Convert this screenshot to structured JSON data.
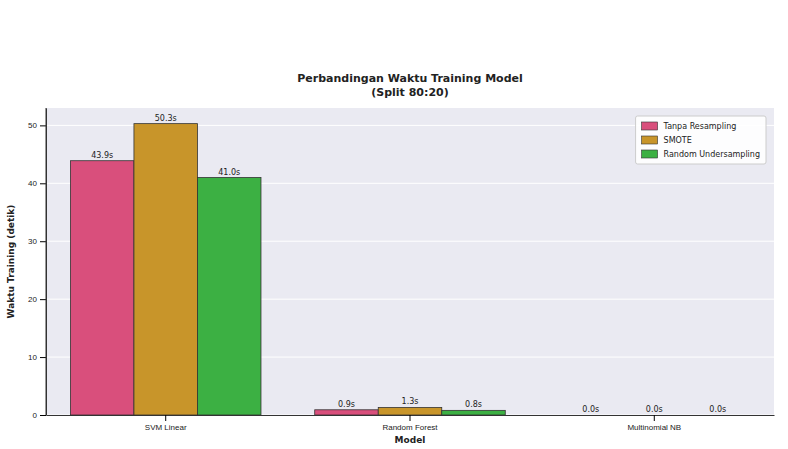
{
  "chart_data": {
    "type": "bar",
    "title": "Perbandingan Waktu Training Model",
    "subtitle": "(Split 80:20)",
    "x_label": "Model",
    "y_label": "Waktu Training (detik)",
    "categories": [
      "SVM Linear",
      "Random Forest",
      "Multinomial NB"
    ],
    "series": [
      {
        "name": "Tanpa Resampling",
        "color": "#d94f7c",
        "values": [
          43.9,
          0.9,
          0.0
        ],
        "value_labels": [
          "43.9s",
          "0.9s",
          "0.0s"
        ]
      },
      {
        "name": "SMOTE",
        "color": "#c8952a",
        "values": [
          50.3,
          1.3,
          0.0
        ],
        "value_labels": [
          "50.3s",
          "1.3s",
          "0.0s"
        ]
      },
      {
        "name": "Random Undersampling",
        "color": "#3cb043",
        "values": [
          41.0,
          0.8,
          0.0
        ],
        "value_labels": [
          "41.0s",
          "0.8s",
          "0.0s"
        ]
      }
    ],
    "ylim": [
      0,
      53
    ],
    "yticks": [
      0,
      10,
      20,
      30,
      40,
      50
    ],
    "grid": true,
    "legend": "upper right",
    "data_labels": true
  }
}
